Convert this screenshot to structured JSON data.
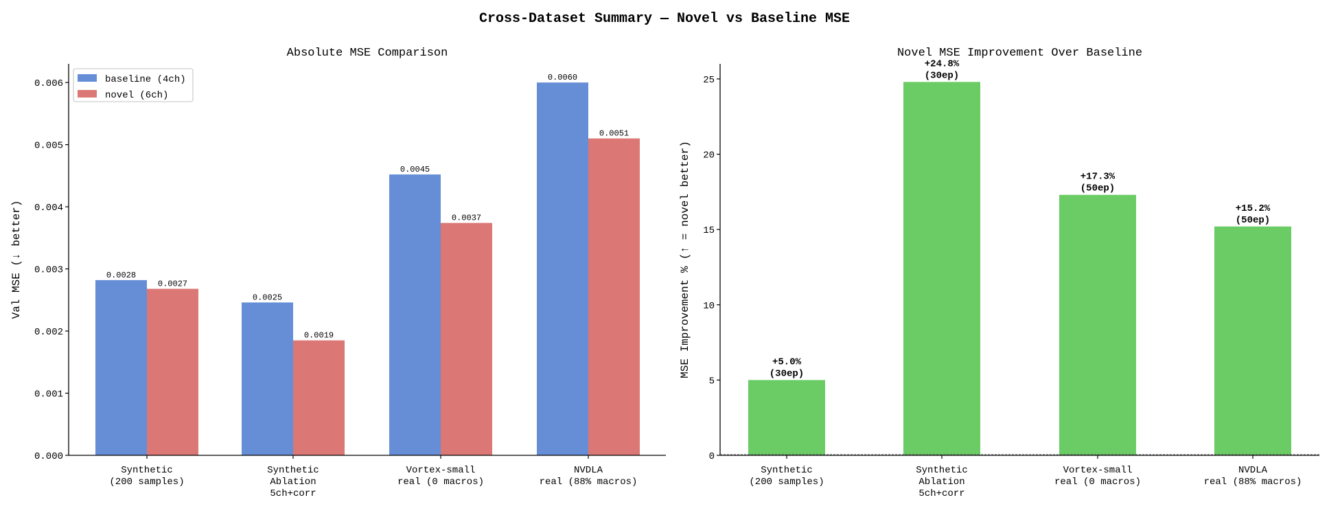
{
  "suptitle": "Cross-Dataset Summary — Novel vs Baseline MSE",
  "chart_data": [
    {
      "type": "bar",
      "title": "Absolute MSE Comparison",
      "xlabel": "",
      "ylabel": "Val MSE (↓ better)",
      "categories": [
        "Synthetic\n(200 samples)",
        "Synthetic\nAblation\n5ch+corr",
        "Vortex-small\nreal (0 macros)",
        "NVDLA\nreal (88% macros)"
      ],
      "ylim": [
        0,
        0.0063
      ],
      "yticks": [
        "0.000",
        "0.001",
        "0.002",
        "0.003",
        "0.004",
        "0.005",
        "0.006"
      ],
      "legend": "top-left",
      "grid": false,
      "series": [
        {
          "name": "baseline (4ch)",
          "color": "#658ed6",
          "values": [
            0.00282,
            0.00246,
            0.00452,
            0.006
          ],
          "labels": [
            "0.0028",
            "0.0025",
            "0.0045",
            "0.0060"
          ]
        },
        {
          "name": "novel (6ch)",
          "color": "#db7876",
          "values": [
            0.00268,
            0.00185,
            0.00374,
            0.0051
          ],
          "labels": [
            "0.0027",
            "0.0019",
            "0.0037",
            "0.0051"
          ]
        }
      ]
    },
    {
      "type": "bar",
      "title": "Novel MSE Improvement Over Baseline",
      "xlabel": "",
      "ylabel": "MSE Improvement % (↑ = novel better)",
      "categories": [
        "Synthetic\n(200 samples)",
        "Synthetic\nAblation\n5ch+corr",
        "Vortex-small\nreal (0 macros)",
        "NVDLA\nreal (88% macros)"
      ],
      "ylim": [
        0,
        26
      ],
      "yticks": [
        "0",
        "5",
        "10",
        "15",
        "20",
        "25"
      ],
      "grid": false,
      "color": "#6bcc66",
      "values": [
        5.0,
        24.8,
        17.3,
        15.2
      ],
      "labels": [
        "+5.0%\n(30ep)",
        "+24.8%\n(30ep)",
        "+17.3%\n(50ep)",
        "+15.2%\n(50ep)"
      ]
    }
  ]
}
